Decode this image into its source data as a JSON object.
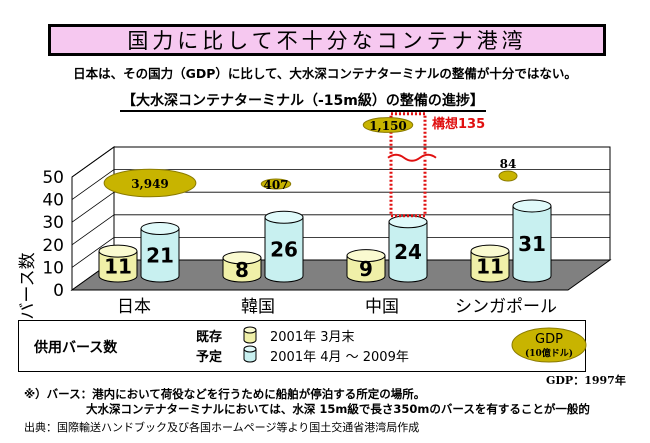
{
  "header": {
    "title": "国力に比して不十分なコンテナ港湾",
    "summary": "日本は、その国力（GDP）に比して、大水深コンテナターミナルの整備が十分ではない。",
    "subtitle": "【大水深コンテナターミナル（-15m級）の整備の進捗】"
  },
  "chart_data": {
    "type": "bar",
    "ylabel": "バース数",
    "ylim": [
      0,
      50
    ],
    "yticks": [
      "0",
      "10",
      "20",
      "30",
      "40",
      "50"
    ],
    "categories": [
      "日本",
      "韓国",
      "中国",
      "シンガポール"
    ],
    "series": [
      {
        "name": "既存",
        "values": [
          11,
          8,
          9,
          11
        ],
        "color": "#f0f0a8"
      },
      {
        "name": "予定",
        "values": [
          21,
          26,
          24,
          31
        ],
        "color": "#c8f0f0"
      }
    ],
    "gdp": [
      "3,949",
      "407",
      "1,150",
      "84"
    ],
    "plan_annotation": "構想135",
    "plan_color": "#e01010",
    "gdp_color": "#c8b400"
  },
  "legend": {
    "title": "供用バース数",
    "existing_label": "既存",
    "existing_text": "2001年 3月末",
    "planned_label": "予定",
    "planned_text": "2001年 4月 ～ 2009年",
    "gdp_label": "GDP",
    "gdp_unit": "(10億ドル)",
    "gdp_year": "GDP：1997年"
  },
  "notes": {
    "note1": "※）バース：港内において荷役などを行うために船舶が停泊する所定の場所。",
    "note2": "大水深コンテナターミナルにおいては、水深 15m級で長さ350mのバースを有することが一般的",
    "source": "出典：国際輸送ハンドブック及び各国ホームページ等より国土交通省港湾局作成"
  }
}
